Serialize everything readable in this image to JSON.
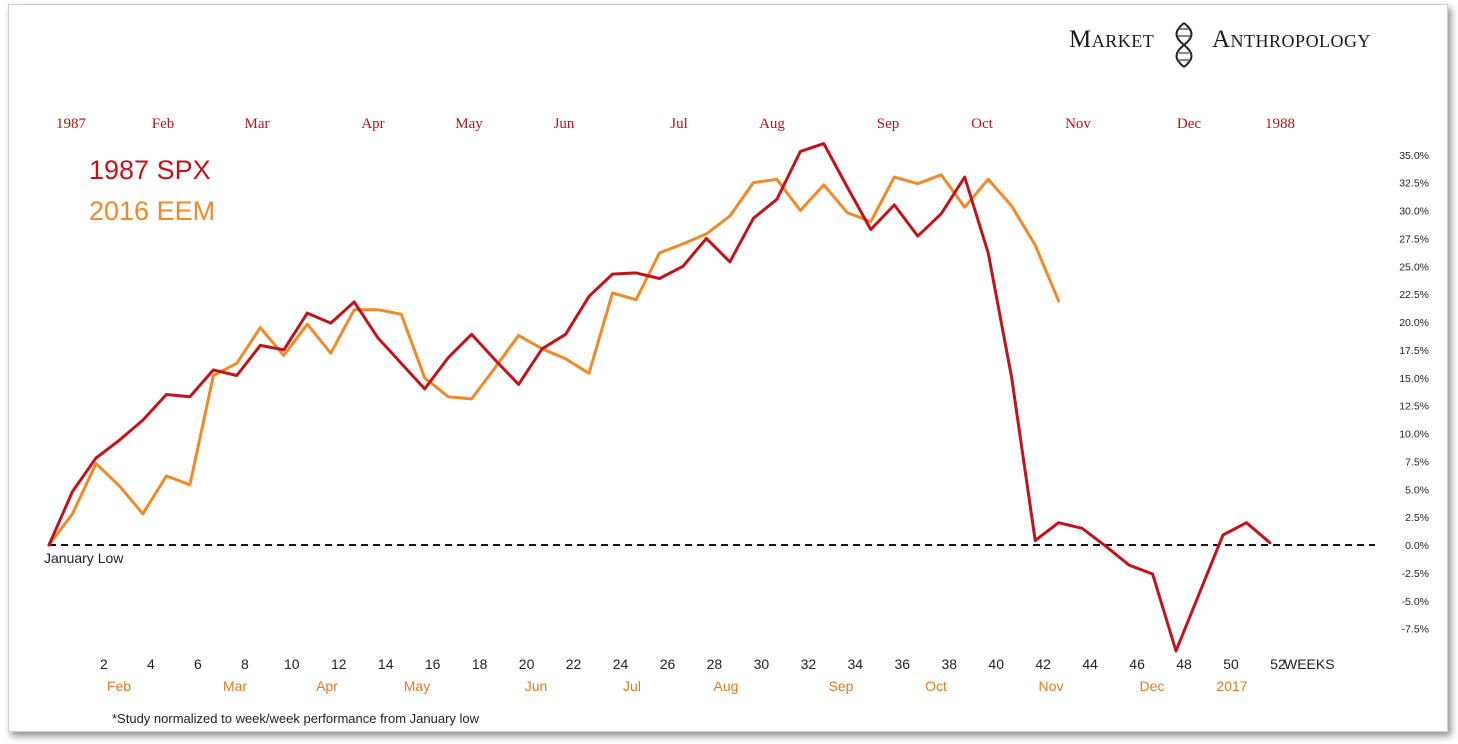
{
  "brand": {
    "left": "Market",
    "right": "Anthropology",
    "logo_icon": "dna-helix-icon"
  },
  "legend": [
    {
      "label": "1987 SPX",
      "color": "#c0141c"
    },
    {
      "label": "2016 EEM",
      "color": "#ee8a2a"
    }
  ],
  "top_axis": [
    "1987",
    "Feb",
    "Mar",
    "Apr",
    "May",
    "Jun",
    "Jul",
    "Aug",
    "Sep",
    "Oct",
    "Nov",
    "Dec",
    "1988"
  ],
  "bottom_axis_months": [
    "Feb",
    "Mar",
    "Apr",
    "May",
    "Jun",
    "Jul",
    "Aug",
    "Sep",
    "Oct",
    "Nov",
    "Dec",
    "2017"
  ],
  "baseline_label": "January Low",
  "footnote": "*Study normalized to week/week performance from January low",
  "colors": {
    "spx": "#c0141c",
    "eem": "#ee8a2a",
    "top_months": "#b5121b",
    "bottom_months": "#e07a23",
    "baseline": "#111111"
  },
  "chart_data": {
    "type": "line",
    "xlabel": "WEEKS",
    "xticks": [
      2,
      4,
      6,
      8,
      10,
      12,
      14,
      16,
      18,
      20,
      22,
      24,
      26,
      28,
      30,
      32,
      34,
      36,
      38,
      40,
      42,
      44,
      46,
      48,
      50,
      52
    ],
    "xlim": [
      0,
      53
    ],
    "ylim": [
      -8.5,
      36
    ],
    "yticks": [
      "35.0%",
      "32.5%",
      "30.0%",
      "27.5%",
      "25.0%",
      "22.5%",
      "20.0%",
      "17.5%",
      "15.0%",
      "12.5%",
      "10.0%",
      "7.5%",
      "5.0%",
      "2.5%",
      "0.0%",
      "-2.5%",
      "-5.0%",
      "-7.5%"
    ],
    "ytick_values": [
      35,
      32.5,
      30,
      27.5,
      25,
      22.5,
      20,
      17.5,
      15,
      12.5,
      10,
      7.5,
      5,
      2.5,
      0,
      -2.5,
      -5,
      -7.5
    ],
    "y_axis_position": "right",
    "grid": false,
    "reference_line": {
      "y": 0,
      "style": "dashed"
    },
    "series": [
      {
        "name": "1987 SPX",
        "x": [
          0,
          1,
          2,
          3,
          4,
          5,
          6,
          7,
          8,
          9,
          10,
          11,
          12,
          13,
          14,
          15,
          16,
          17,
          18,
          19,
          20,
          21,
          22,
          23,
          24,
          25,
          26,
          27,
          28,
          29,
          30,
          31,
          32,
          33,
          34,
          35,
          36,
          37,
          38,
          39,
          40,
          41,
          42,
          43,
          44,
          45,
          46,
          47,
          48,
          49,
          50,
          51,
          52
        ],
        "values": [
          0,
          4.8,
          7.8,
          9.4,
          11.2,
          13.5,
          13.3,
          15.7,
          15.2,
          17.9,
          17.5,
          20.8,
          19.9,
          21.8,
          18.6,
          16.3,
          14.0,
          16.8,
          18.9,
          16.6,
          14.4,
          17.6,
          18.9,
          22.3,
          24.3,
          24.4,
          23.9,
          25.0,
          27.5,
          25.4,
          29.3,
          31.0,
          35.3,
          36.0,
          32.1,
          28.3,
          30.5,
          27.7,
          29.7,
          33.0,
          26.2,
          15.0,
          0.4,
          2.0,
          1.5,
          -0.1,
          -1.8,
          -2.6,
          -9.5,
          -4.3,
          0.9,
          2.0,
          0.2
        ]
      },
      {
        "name": "2016 EEM",
        "x": [
          0,
          1,
          2,
          3,
          4,
          5,
          6,
          7,
          8,
          9,
          10,
          11,
          12,
          13,
          14,
          15,
          16,
          17,
          18,
          19,
          20,
          21,
          22,
          23,
          24,
          25,
          26,
          27,
          28,
          29,
          30,
          31,
          32,
          33,
          34,
          35,
          36,
          37,
          38,
          39,
          40,
          41,
          42,
          43
        ],
        "values": [
          0,
          2.8,
          7.3,
          5.3,
          2.8,
          6.2,
          5.4,
          15.2,
          16.3,
          19.5,
          17.0,
          19.8,
          17.2,
          21.1,
          21.1,
          20.7,
          15.0,
          13.3,
          13.1,
          15.9,
          18.8,
          17.6,
          16.7,
          15.4,
          22.6,
          22.0,
          26.2,
          27.0,
          27.9,
          29.5,
          32.5,
          32.8,
          30.0,
          32.3,
          29.8,
          29.0,
          33.0,
          32.4,
          33.2,
          30.3,
          32.8,
          30.4,
          26.9,
          21.9
        ]
      }
    ]
  }
}
